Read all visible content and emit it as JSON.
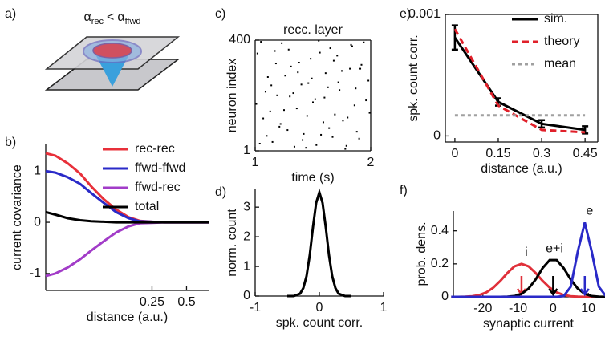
{
  "diagram": {
    "label": "a)",
    "formula": {
      "base1": "α",
      "sub1": "rec",
      "op": "<",
      "base2": "α",
      "sub2": "ffwd"
    }
  },
  "chart_data": [
    {
      "type": "line",
      "panel": "b)",
      "xlabel": "distance (a.u.)",
      "ylabel": "current covariance",
      "x": [
        -0.52,
        -0.45,
        -0.36,
        -0.27,
        -0.19,
        -0.1,
        -0.01,
        0.08,
        0.16,
        0.25,
        0.34,
        0.42,
        0.66
      ],
      "xlim": [
        -0.52,
        0.66
      ],
      "xticks": [
        0.25,
        0.5
      ],
      "ylim": [
        -1.33,
        1.52
      ],
      "yticks": [
        -1,
        0,
        1
      ],
      "legend": "upper right",
      "series": [
        {
          "name": "rec-rec",
          "color": "#e8303a",
          "values": [
            1.35,
            1.3,
            1.15,
            0.95,
            0.7,
            0.45,
            0.25,
            0.1,
            0.03,
            0.01,
            0,
            0,
            0
          ]
        },
        {
          "name": "ffwd-ffwd",
          "color": "#2a2ac8",
          "values": [
            1.0,
            0.97,
            0.88,
            0.75,
            0.57,
            0.38,
            0.2,
            0.08,
            0.02,
            0.01,
            0,
            0,
            0
          ]
        },
        {
          "name": "ffwd-rec",
          "color": "#a23cc8",
          "values": [
            -1.05,
            -1.0,
            -0.88,
            -0.72,
            -0.55,
            -0.37,
            -0.2,
            -0.08,
            -0.02,
            -0.01,
            0,
            0,
            0
          ]
        },
        {
          "name": "total",
          "color": "#000000",
          "values": [
            0.2,
            0.15,
            0.08,
            0.04,
            0.02,
            0.01,
            0,
            0,
            0,
            0,
            0,
            0,
            0
          ]
        }
      ]
    },
    {
      "type": "scatter",
      "panel": "c)",
      "title": "recc. layer",
      "xlabel": "time (s)",
      "ylabel": "neuron index",
      "color": "#000000",
      "box": true,
      "x": [
        1.02,
        1.07,
        1.11,
        1.15,
        1.19,
        1.23,
        1.28,
        1.31,
        1.36,
        1.4,
        1.44,
        1.48,
        1.52,
        1.57,
        1.61,
        1.65,
        1.69,
        1.73,
        1.78,
        1.82,
        1.86,
        1.9,
        1.94,
        1.98,
        1.04,
        1.09,
        1.13,
        1.17,
        1.21,
        1.26,
        1.3,
        1.34,
        1.38,
        1.42,
        1.46,
        1.5,
        1.55,
        1.59,
        1.63,
        1.67,
        1.71,
        1.75,
        1.8,
        1.84,
        1.88,
        1.92,
        1.96,
        1.99,
        1.01,
        1.05,
        1.1,
        1.14,
        1.18,
        1.22,
        1.25,
        1.29,
        1.33,
        1.37,
        1.41,
        1.45,
        1.49,
        1.53,
        1.56,
        1.6,
        1.64,
        1.68,
        1.72,
        1.76,
        1.79,
        1.83,
        1.87,
        1.91
      ],
      "y": [
        352,
        118,
        267,
        33,
        201,
        389,
        76,
        305,
        154,
        240,
        12,
        333,
        187,
        59,
        281,
        371,
        132,
        220,
        8,
        297,
        165,
        45,
        392,
        254,
        27,
        214,
        143,
        361,
        88,
        272,
        197,
        16,
        319,
        62,
        245,
        176,
        398,
        104,
        230,
        51,
        344,
        289,
        121,
        378,
        70,
        311,
        183,
        138,
        170,
        394,
        55,
        237,
        316,
        98,
        148,
        366,
        209,
        284,
        40,
        127,
        262,
        22,
        355,
        193,
        83,
        326,
        248,
        110,
        19,
        383,
        226,
        297
      ],
      "xlim": [
        1,
        2
      ],
      "xticks": [
        1,
        2
      ],
      "ylim": [
        1,
        400
      ],
      "yticks": [
        1,
        400
      ]
    },
    {
      "type": "line",
      "panel": "d)",
      "xlabel": "spk. count corr.",
      "ylabel": "norm. count",
      "x": [
        -0.5,
        -0.4,
        -0.3,
        -0.25,
        -0.2,
        -0.15,
        -0.1,
        -0.05,
        0,
        0.05,
        0.1,
        0.15,
        0.2,
        0.25,
        0.3,
        0.4,
        0.5
      ],
      "xlim": [
        -1,
        1
      ],
      "xticks": [
        -1,
        0,
        1
      ],
      "ylim": [
        0,
        3.6
      ],
      "yticks": [
        0,
        1,
        2,
        3
      ],
      "series": [
        {
          "color": "#000000",
          "values": [
            0,
            0,
            0.08,
            0.27,
            0.67,
            1.38,
            2.32,
            3.14,
            3.5,
            3.14,
            2.32,
            1.38,
            0.67,
            0.27,
            0.08,
            0,
            0
          ]
        }
      ]
    },
    {
      "type": "line",
      "panel": "e)",
      "xlabel": "distance (a.u.)",
      "ylabel": "spk. count corr.",
      "box": true,
      "x": [
        0,
        0.15,
        0.3,
        0.45
      ],
      "xlim": [
        -0.033,
        0.494
      ],
      "xticks": [
        0,
        0.15,
        0.3,
        0.45
      ],
      "ylim": [
        -5e-05,
        0.001
      ],
      "yticks": [
        0,
        0.001
      ],
      "legend": "upper right",
      "series": [
        {
          "name": "sim.",
          "color": "#000000",
          "line_style": "solid",
          "values": [
            0.00081,
            0.00028,
            0.0001,
            5e-05
          ],
          "errors": [
            0.0001,
            3e-05,
            3e-05,
            3e-05
          ]
        },
        {
          "name": "theory",
          "color": "#e0202a",
          "line_style": "dashed",
          "values": [
            0.00088,
            0.00025,
            5e-05,
            3e-05
          ]
        },
        {
          "name": "mean",
          "color": "#a0a0a0",
          "line_style": "dotted",
          "values": [
            0.00017,
            0.00017,
            0.00017,
            0.00017
          ]
        }
      ]
    },
    {
      "type": "line",
      "panel": "f)",
      "xlabel": "synaptic current",
      "ylabel": "prob. dens.",
      "series_labels": "at-peak",
      "x": [
        -29,
        -27,
        -25,
        -23,
        -21,
        -19,
        -17,
        -15,
        -13,
        -11,
        -9,
        -7,
        -5,
        -3,
        -1,
        1,
        3,
        5,
        7,
        9,
        11,
        13,
        15
      ],
      "xlim": [
        -28.4,
        14.3
      ],
      "xticks": [
        -20,
        -10,
        0,
        10
      ],
      "ylim": [
        0,
        0.52
      ],
      "yticks": [
        0,
        0.2,
        0.4
      ],
      "series": [
        {
          "name": "i",
          "color": "#e0303a",
          "arrow_x": -9,
          "values": [
            0,
            0,
            0.001,
            0.004,
            0.011,
            0.027,
            0.056,
            0.097,
            0.145,
            0.185,
            0.2,
            0.185,
            0.145,
            0.097,
            0.056,
            0.027,
            0.011,
            0.004,
            0.001,
            0,
            0,
            0,
            0
          ]
        },
        {
          "name": "e+i",
          "color": "#000000",
          "arrow_x": 0,
          "values": [
            0,
            0,
            0,
            0,
            0,
            0,
            0,
            0,
            0.001,
            0.005,
            0.018,
            0.05,
            0.105,
            0.174,
            0.223,
            0.223,
            0.174,
            0.105,
            0.05,
            0.018,
            0.005,
            0.001,
            0
          ]
        },
        {
          "name": "e",
          "color": "#2a2ac8",
          "arrow_x": 9,
          "values": [
            0,
            0,
            0,
            0,
            0,
            0,
            0,
            0,
            0,
            0,
            0,
            0,
            0,
            0,
            0,
            0,
            0.005,
            0.061,
            0.273,
            0.45,
            0.273,
            0.061,
            0.005
          ]
        }
      ]
    }
  ]
}
